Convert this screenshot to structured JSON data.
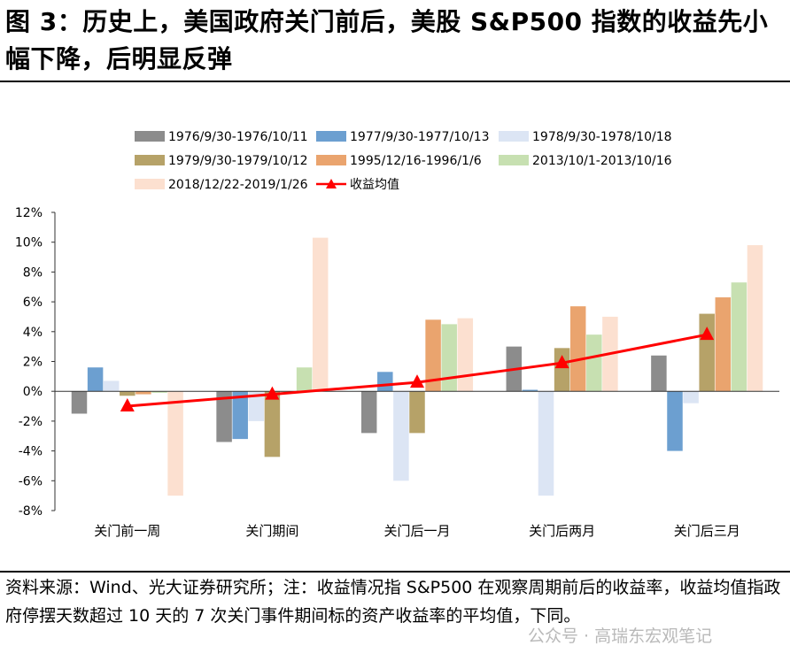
{
  "figure_title": "图 3：历史上，美国政府关门前后，美股 S&P500 指数的收益先小幅下降，后明显反弹",
  "source_note": "资料来源：Wind、光大证券研究所；注：收益情况指 S&P500 在观察周期前后的收益率，收益均值指政府停摆天数超过 10 天的 7 次关门事件期间标的资产收益率的平均值，下同。",
  "watermark": "公众号 · 高瑞东宏观笔记",
  "chart_data": {
    "type": "bar",
    "categories": [
      "关门前一周",
      "关门期间",
      "关门后一月",
      "关门后两月",
      "关门后三月"
    ],
    "series": [
      {
        "name": "1976/9/30-1976/10/11",
        "color": "#8c8c8c",
        "values": [
          -1.5,
          -3.4,
          -2.8,
          3.0,
          2.4
        ]
      },
      {
        "name": "1977/9/30-1977/10/13",
        "color": "#6c9fd0",
        "values": [
          1.6,
          -3.2,
          1.3,
          0.1,
          -4.0
        ]
      },
      {
        "name": "1978/9/30-1978/10/18",
        "color": "#dce5f4",
        "values": [
          0.7,
          -2.0,
          -6.0,
          -7.0,
          -0.8
        ]
      },
      {
        "name": "1979/9/30-1979/10/12",
        "color": "#b6a268",
        "values": [
          -0.3,
          -4.4,
          -2.8,
          2.9,
          5.2
        ]
      },
      {
        "name": "1995/12/16-1996/1/6",
        "color": "#eaa46e",
        "values": [
          -0.2,
          0.0,
          4.8,
          5.7,
          6.3
        ]
      },
      {
        "name": "2013/10/1-2013/10/16",
        "color": "#c7e0b1",
        "values": [
          -0.1,
          1.6,
          4.5,
          3.8,
          7.3
        ]
      },
      {
        "name": "2018/12/22-2019/1/26",
        "color": "#fce0d0",
        "values": [
          -7.0,
          10.3,
          4.9,
          5.0,
          9.8
        ]
      }
    ],
    "average": {
      "name": "收益均值",
      "color": "#ff0000",
      "values": [
        -1.0,
        -0.2,
        0.6,
        1.9,
        3.8
      ]
    },
    "ylim": [
      -8,
      12
    ],
    "yticks": [
      -8,
      -6,
      -4,
      -2,
      0,
      2,
      4,
      6,
      8,
      10,
      12
    ],
    "ytick_labels": [
      "-8%",
      "-6%",
      "-4%",
      "-2%",
      "0%",
      "2%",
      "4%",
      "6%",
      "8%",
      "10%",
      "12%"
    ],
    "xlabel": "",
    "ylabel": "",
    "legend_position": "top"
  }
}
